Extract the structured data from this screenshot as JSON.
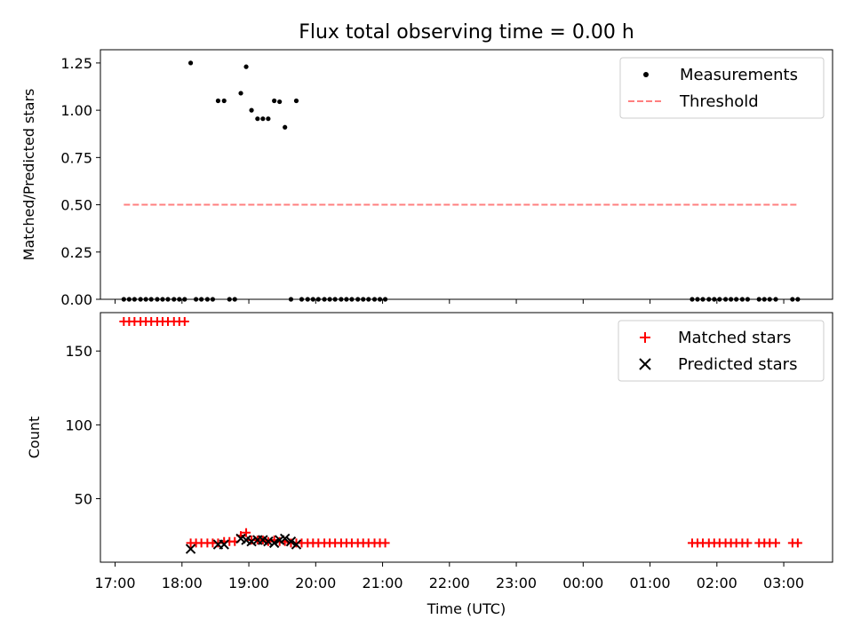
{
  "chart_data": [
    {
      "type": "scatter",
      "title": "Flux total observing time = 0.00 h",
      "xlabel": "",
      "ylabel": "Matched/Predicted stars",
      "xlim": [
        16.78,
        27.73
      ],
      "ylim": [
        0,
        1.32
      ],
      "yticks": [
        0.0,
        0.25,
        0.5,
        0.75,
        1.0,
        1.25
      ],
      "ytick_labels": [
        "0.00",
        "0.25",
        "0.50",
        "0.75",
        "1.00",
        "1.25"
      ],
      "legend_position": "top-right",
      "series": [
        {
          "name": "Measurements",
          "kind": "scatter",
          "color": "#000000",
          "points": [
            [
              17.13,
              0
            ],
            [
              17.21,
              0
            ],
            [
              17.29,
              0
            ],
            [
              17.38,
              0
            ],
            [
              17.46,
              0
            ],
            [
              17.54,
              0
            ],
            [
              17.63,
              0
            ],
            [
              17.71,
              0
            ],
            [
              17.79,
              0
            ],
            [
              17.88,
              0
            ],
            [
              17.96,
              0
            ],
            [
              18.04,
              0
            ],
            [
              18.13,
              1.25
            ],
            [
              18.21,
              0
            ],
            [
              18.29,
              0
            ],
            [
              18.38,
              0
            ],
            [
              18.46,
              0
            ],
            [
              18.54,
              1.05
            ],
            [
              18.63,
              1.05
            ],
            [
              18.71,
              0
            ],
            [
              18.79,
              0
            ],
            [
              18.88,
              1.09
            ],
            [
              18.96,
              1.23
            ],
            [
              19.04,
              1.0
            ],
            [
              19.13,
              0.955
            ],
            [
              19.21,
              0.955
            ],
            [
              19.29,
              0.955
            ],
            [
              19.38,
              1.05
            ],
            [
              19.46,
              1.045
            ],
            [
              19.54,
              0.91
            ],
            [
              19.63,
              0
            ],
            [
              19.71,
              1.05
            ],
            [
              19.79,
              0
            ],
            [
              19.88,
              0
            ],
            [
              19.96,
              0
            ],
            [
              20.04,
              0
            ],
            [
              20.13,
              0
            ],
            [
              20.21,
              0
            ],
            [
              20.29,
              0
            ],
            [
              20.38,
              0
            ],
            [
              20.46,
              0
            ],
            [
              20.54,
              0
            ],
            [
              20.63,
              0
            ],
            [
              20.71,
              0
            ],
            [
              20.79,
              0
            ],
            [
              20.88,
              0
            ],
            [
              20.96,
              0
            ],
            [
              21.04,
              0
            ],
            [
              25.63,
              0
            ],
            [
              25.71,
              0
            ],
            [
              25.79,
              0
            ],
            [
              25.88,
              0
            ],
            [
              25.96,
              0
            ],
            [
              26.04,
              0
            ],
            [
              26.13,
              0
            ],
            [
              26.21,
              0
            ],
            [
              26.29,
              0
            ],
            [
              26.38,
              0
            ],
            [
              26.46,
              0
            ],
            [
              26.63,
              0
            ],
            [
              26.71,
              0
            ],
            [
              26.79,
              0
            ],
            [
              26.88,
              0
            ],
            [
              27.13,
              0
            ],
            [
              27.21,
              0
            ]
          ]
        },
        {
          "name": "Threshold",
          "kind": "dashed-line",
          "color": "#ff7f7f",
          "x": [
            17.13,
            27.21
          ],
          "y": [
            0.5,
            0.5
          ]
        }
      ]
    },
    {
      "type": "scatter",
      "title": "",
      "xlabel": "Time (UTC)",
      "ylabel": "Count",
      "xlim": [
        16.78,
        27.73
      ],
      "ylim": [
        7,
        176
      ],
      "yticks": [
        50,
        100,
        150
      ],
      "ytick_labels": [
        "50",
        "100",
        "150"
      ],
      "legend_position": "top-right",
      "series": [
        {
          "name": "Matched stars",
          "kind": "plus",
          "color": "#ff0000",
          "points": [
            [
              17.13,
              170
            ],
            [
              17.21,
              170
            ],
            [
              17.29,
              170
            ],
            [
              17.38,
              170
            ],
            [
              17.46,
              170
            ],
            [
              17.54,
              170
            ],
            [
              17.63,
              170
            ],
            [
              17.71,
              170
            ],
            [
              17.79,
              170
            ],
            [
              17.88,
              170
            ],
            [
              17.96,
              170
            ],
            [
              18.04,
              170
            ],
            [
              18.13,
              20
            ],
            [
              18.21,
              20
            ],
            [
              18.29,
              20
            ],
            [
              18.38,
              20
            ],
            [
              18.46,
              20
            ],
            [
              18.54,
              20
            ],
            [
              18.63,
              21
            ],
            [
              18.71,
              21
            ],
            [
              18.79,
              21
            ],
            [
              18.88,
              25
            ],
            [
              18.96,
              27
            ],
            [
              19.04,
              22
            ],
            [
              19.13,
              22
            ],
            [
              19.21,
              22
            ],
            [
              19.29,
              21
            ],
            [
              19.38,
              22
            ],
            [
              19.46,
              21
            ],
            [
              19.54,
              21
            ],
            [
              19.63,
              20
            ],
            [
              19.71,
              20
            ],
            [
              19.79,
              20
            ],
            [
              19.88,
              20
            ],
            [
              19.96,
              20
            ],
            [
              20.04,
              20
            ],
            [
              20.13,
              20
            ],
            [
              20.21,
              20
            ],
            [
              20.29,
              20
            ],
            [
              20.38,
              20
            ],
            [
              20.46,
              20
            ],
            [
              20.54,
              20
            ],
            [
              20.63,
              20
            ],
            [
              20.71,
              20
            ],
            [
              20.79,
              20
            ],
            [
              20.88,
              20
            ],
            [
              20.96,
              20
            ],
            [
              21.04,
              20
            ],
            [
              25.63,
              20
            ],
            [
              25.71,
              20
            ],
            [
              25.79,
              20
            ],
            [
              25.88,
              20
            ],
            [
              25.96,
              20
            ],
            [
              26.04,
              20
            ],
            [
              26.13,
              20
            ],
            [
              26.21,
              20
            ],
            [
              26.29,
              20
            ],
            [
              26.38,
              20
            ],
            [
              26.46,
              20
            ],
            [
              26.63,
              20
            ],
            [
              26.71,
              20
            ],
            [
              26.79,
              20
            ],
            [
              26.88,
              20
            ],
            [
              27.13,
              20
            ],
            [
              27.21,
              20
            ]
          ]
        },
        {
          "name": "Predicted stars",
          "kind": "cross",
          "color": "#000000",
          "points": [
            [
              18.13,
              16
            ],
            [
              18.54,
              19
            ],
            [
              18.63,
              19
            ],
            [
              18.88,
              23
            ],
            [
              18.96,
              22
            ],
            [
              19.04,
              21
            ],
            [
              19.13,
              22
            ],
            [
              19.21,
              22
            ],
            [
              19.29,
              21
            ],
            [
              19.38,
              20
            ],
            [
              19.46,
              22
            ],
            [
              19.54,
              23
            ],
            [
              19.63,
              21
            ],
            [
              19.71,
              19
            ]
          ]
        }
      ]
    }
  ],
  "x_axis": {
    "tick_values": [
      17,
      18,
      19,
      20,
      21,
      22,
      23,
      24,
      25,
      26,
      27
    ],
    "tick_labels": [
      "17:00",
      "18:00",
      "19:00",
      "20:00",
      "21:00",
      "22:00",
      "23:00",
      "00:00",
      "01:00",
      "02:00",
      "03:00"
    ]
  }
}
